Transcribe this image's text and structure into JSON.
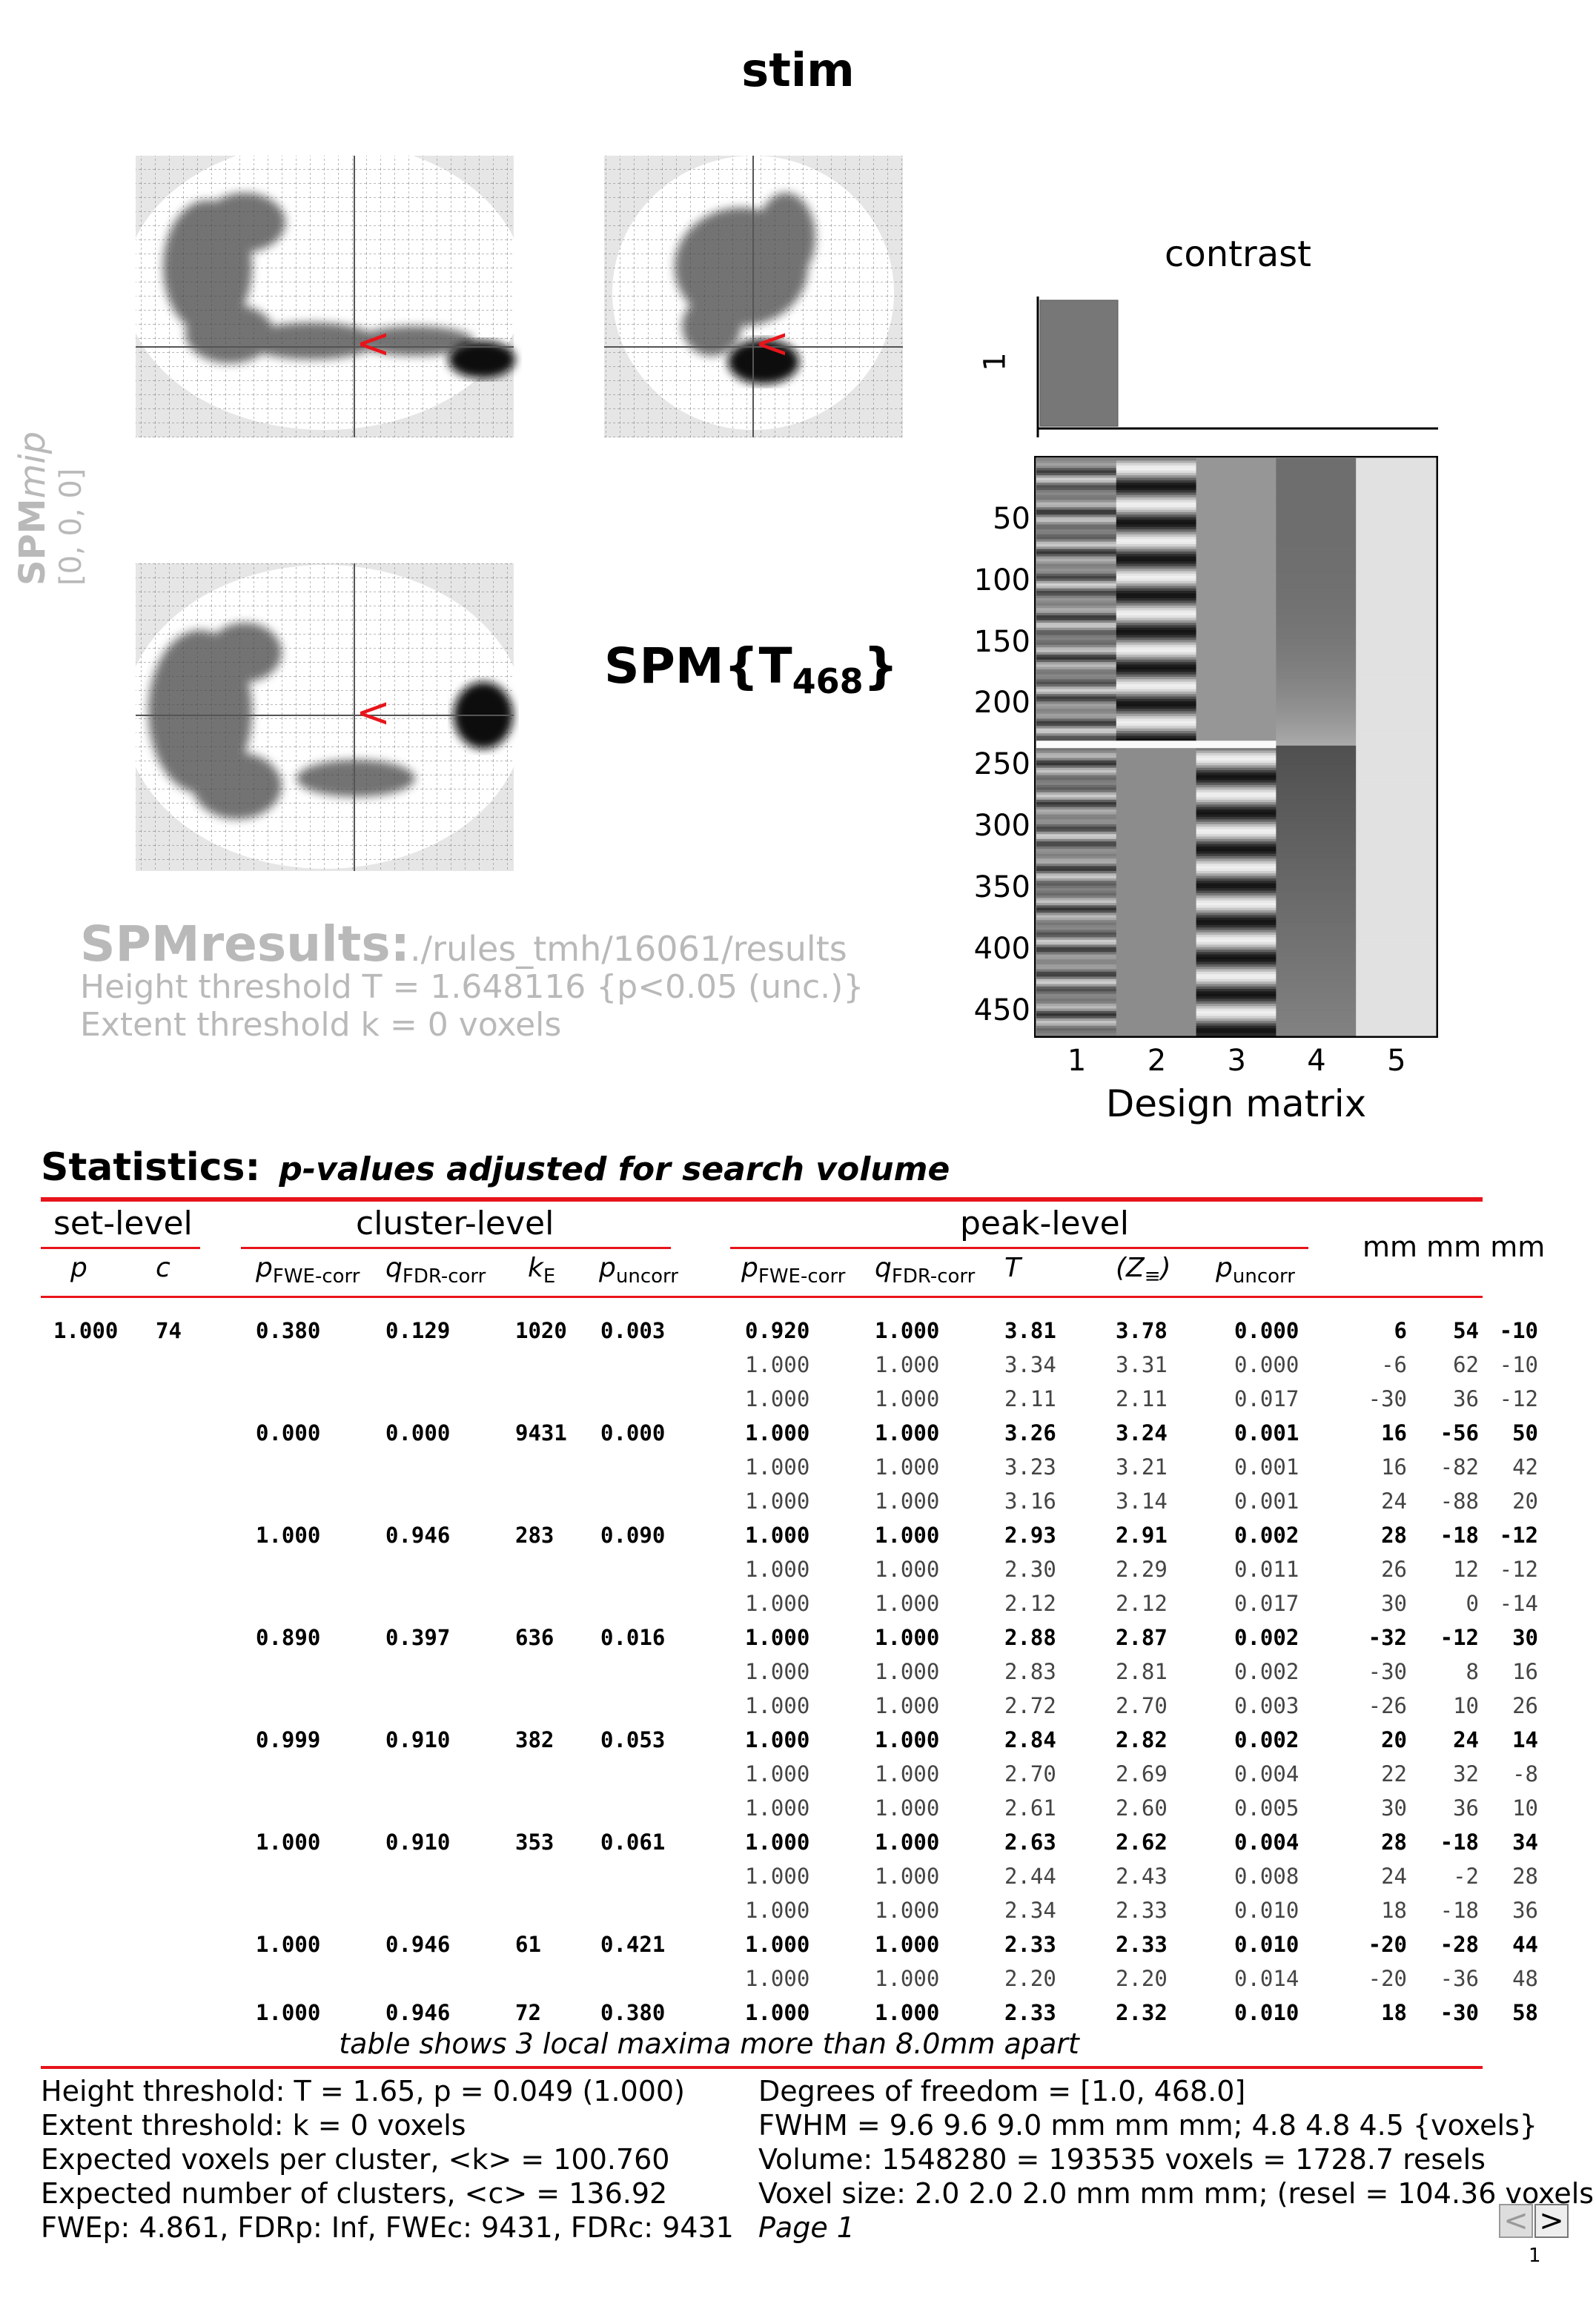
{
  "title": "stim",
  "spmmip": {
    "name_bold": "SPM",
    "name_italic": "mip",
    "coords": "[0, 0, 0]"
  },
  "spm_stat": {
    "prefix": "SPM{T",
    "df": "468",
    "suffix": "}"
  },
  "results": {
    "label": "SPMresults:",
    "path": "./rules_tmh/16061/results",
    "height": "Height threshold T = 1.648116  {p<0.05 (unc.)}",
    "extent": "Extent threshold k = 0 voxels"
  },
  "contrast": {
    "title": "contrast",
    "ytick": "1",
    "bar_value": 1
  },
  "design_matrix": {
    "title": "Design matrix",
    "row_ticks": [
      "50",
      "100",
      "150",
      "200",
      "250",
      "300",
      "350",
      "400",
      "450"
    ],
    "col_ticks": [
      "1",
      "2",
      "3",
      "4",
      "5"
    ],
    "rows": 470
  },
  "statistics": {
    "heading": "Statistics:",
    "subtitle": "p-values adjusted for search volume",
    "groups": {
      "set": "set-level",
      "cluster": "cluster-level",
      "peak": "peak-level",
      "mm": "mm mm mm"
    },
    "cols": {
      "set_p": "p",
      "set_c": "c",
      "cl_pfwe": "p",
      "cl_pfwe_sub": "FWE-corr",
      "cl_qfdr": "q",
      "cl_qfdr_sub": "FDR-corr",
      "cl_k": "k",
      "cl_k_sub": "E",
      "cl_punc": "p",
      "cl_punc_sub": "uncorr",
      "pk_pfwe": "p",
      "pk_pfwe_sub": "FWE-corr",
      "pk_qfdr": "q",
      "pk_qfdr_sub": "FDR-corr",
      "pk_t": "T",
      "pk_z": "(Z",
      "pk_z_sub": "≡",
      "pk_z_close": ")",
      "pk_punc": "p",
      "pk_punc_sub": "uncorr"
    },
    "rows": [
      {
        "bold": true,
        "set_p": "1.000",
        "set_c": "74",
        "cl": [
          "0.380",
          "0.129",
          "1020",
          "0.003"
        ],
        "pk": [
          "0.920",
          "1.000",
          "3.81",
          "3.78",
          "0.000"
        ],
        "mm": [
          "6",
          "54",
          "-10"
        ]
      },
      {
        "bold": false,
        "pk": [
          "1.000",
          "1.000",
          "3.34",
          "3.31",
          "0.000"
        ],
        "mm": [
          "-6",
          "62",
          "-10"
        ]
      },
      {
        "bold": false,
        "pk": [
          "1.000",
          "1.000",
          "2.11",
          "2.11",
          "0.017"
        ],
        "mm": [
          "-30",
          "36",
          "-12"
        ]
      },
      {
        "bold": true,
        "cl": [
          "0.000",
          "0.000",
          "9431",
          "0.000"
        ],
        "pk": [
          "1.000",
          "1.000",
          "3.26",
          "3.24",
          "0.001"
        ],
        "mm": [
          "16",
          "-56",
          "50"
        ]
      },
      {
        "bold": false,
        "pk": [
          "1.000",
          "1.000",
          "3.23",
          "3.21",
          "0.001"
        ],
        "mm": [
          "16",
          "-82",
          "42"
        ]
      },
      {
        "bold": false,
        "pk": [
          "1.000",
          "1.000",
          "3.16",
          "3.14",
          "0.001"
        ],
        "mm": [
          "24",
          "-88",
          "20"
        ]
      },
      {
        "bold": true,
        "cl": [
          "1.000",
          "0.946",
          "283",
          "0.090"
        ],
        "pk": [
          "1.000",
          "1.000",
          "2.93",
          "2.91",
          "0.002"
        ],
        "mm": [
          "28",
          "-18",
          "-12"
        ]
      },
      {
        "bold": false,
        "pk": [
          "1.000",
          "1.000",
          "2.30",
          "2.29",
          "0.011"
        ],
        "mm": [
          "26",
          "12",
          "-12"
        ]
      },
      {
        "bold": false,
        "pk": [
          "1.000",
          "1.000",
          "2.12",
          "2.12",
          "0.017"
        ],
        "mm": [
          "30",
          "0",
          "-14"
        ]
      },
      {
        "bold": true,
        "cl": [
          "0.890",
          "0.397",
          "636",
          "0.016"
        ],
        "pk": [
          "1.000",
          "1.000",
          "2.88",
          "2.87",
          "0.002"
        ],
        "mm": [
          "-32",
          "-12",
          "30"
        ]
      },
      {
        "bold": false,
        "pk": [
          "1.000",
          "1.000",
          "2.83",
          "2.81",
          "0.002"
        ],
        "mm": [
          "-30",
          "8",
          "16"
        ]
      },
      {
        "bold": false,
        "pk": [
          "1.000",
          "1.000",
          "2.72",
          "2.70",
          "0.003"
        ],
        "mm": [
          "-26",
          "10",
          "26"
        ]
      },
      {
        "bold": true,
        "cl": [
          "0.999",
          "0.910",
          "382",
          "0.053"
        ],
        "pk": [
          "1.000",
          "1.000",
          "2.84",
          "2.82",
          "0.002"
        ],
        "mm": [
          "20",
          "24",
          "14"
        ]
      },
      {
        "bold": false,
        "pk": [
          "1.000",
          "1.000",
          "2.70",
          "2.69",
          "0.004"
        ],
        "mm": [
          "22",
          "32",
          "-8"
        ]
      },
      {
        "bold": false,
        "pk": [
          "1.000",
          "1.000",
          "2.61",
          "2.60",
          "0.005"
        ],
        "mm": [
          "30",
          "36",
          "10"
        ]
      },
      {
        "bold": true,
        "cl": [
          "1.000",
          "0.910",
          "353",
          "0.061"
        ],
        "pk": [
          "1.000",
          "1.000",
          "2.63",
          "2.62",
          "0.004"
        ],
        "mm": [
          "28",
          "-18",
          "34"
        ]
      },
      {
        "bold": false,
        "pk": [
          "1.000",
          "1.000",
          "2.44",
          "2.43",
          "0.008"
        ],
        "mm": [
          "24",
          "-2",
          "28"
        ]
      },
      {
        "bold": false,
        "pk": [
          "1.000",
          "1.000",
          "2.34",
          "2.33",
          "0.010"
        ],
        "mm": [
          "18",
          "-18",
          "36"
        ]
      },
      {
        "bold": true,
        "cl": [
          "1.000",
          "0.946",
          "61",
          "0.421"
        ],
        "pk": [
          "1.000",
          "1.000",
          "2.33",
          "2.33",
          "0.010"
        ],
        "mm": [
          "-20",
          "-28",
          "44"
        ]
      },
      {
        "bold": false,
        "pk": [
          "1.000",
          "1.000",
          "2.20",
          "2.20",
          "0.014"
        ],
        "mm": [
          "-20",
          "-36",
          "48"
        ]
      },
      {
        "bold": true,
        "cl": [
          "1.000",
          "0.946",
          "72",
          "0.380"
        ],
        "pk": [
          "1.000",
          "1.000",
          "2.33",
          "2.32",
          "0.010"
        ],
        "mm": [
          "18",
          "-30",
          "58"
        ]
      }
    ],
    "note": "table shows 3 local maxima more than 8.0mm apart"
  },
  "footer": {
    "left": [
      "Height threshold: T = 1.65, p = 0.049 (1.000)",
      "Extent threshold: k = 0 voxels",
      "Expected voxels per cluster, <k> = 100.760",
      "Expected number of clusters, <c> = 136.92",
      "FWEp: 4.861, FDRp: Inf, FWEc: 9431, FDRc: 9431"
    ],
    "right": [
      "Degrees of freedom = [1.0, 468.0]",
      "FWHM = 9.6 9.6 9.0 mm mm mm; 4.8 4.8 4.5 {voxels}",
      "Volume: 1548280 = 193535 voxels = 1728.7 resels",
      "Voxel size: 2.0 2.0 2.0 mm mm mm; (resel = 104.36 voxels)"
    ],
    "page": "Page 1"
  },
  "nav": {
    "prev": "<",
    "next": ">",
    "page_num": "1"
  },
  "colors": {
    "accent_red": "#e8141b",
    "grey_text": "#b9b9b9"
  }
}
